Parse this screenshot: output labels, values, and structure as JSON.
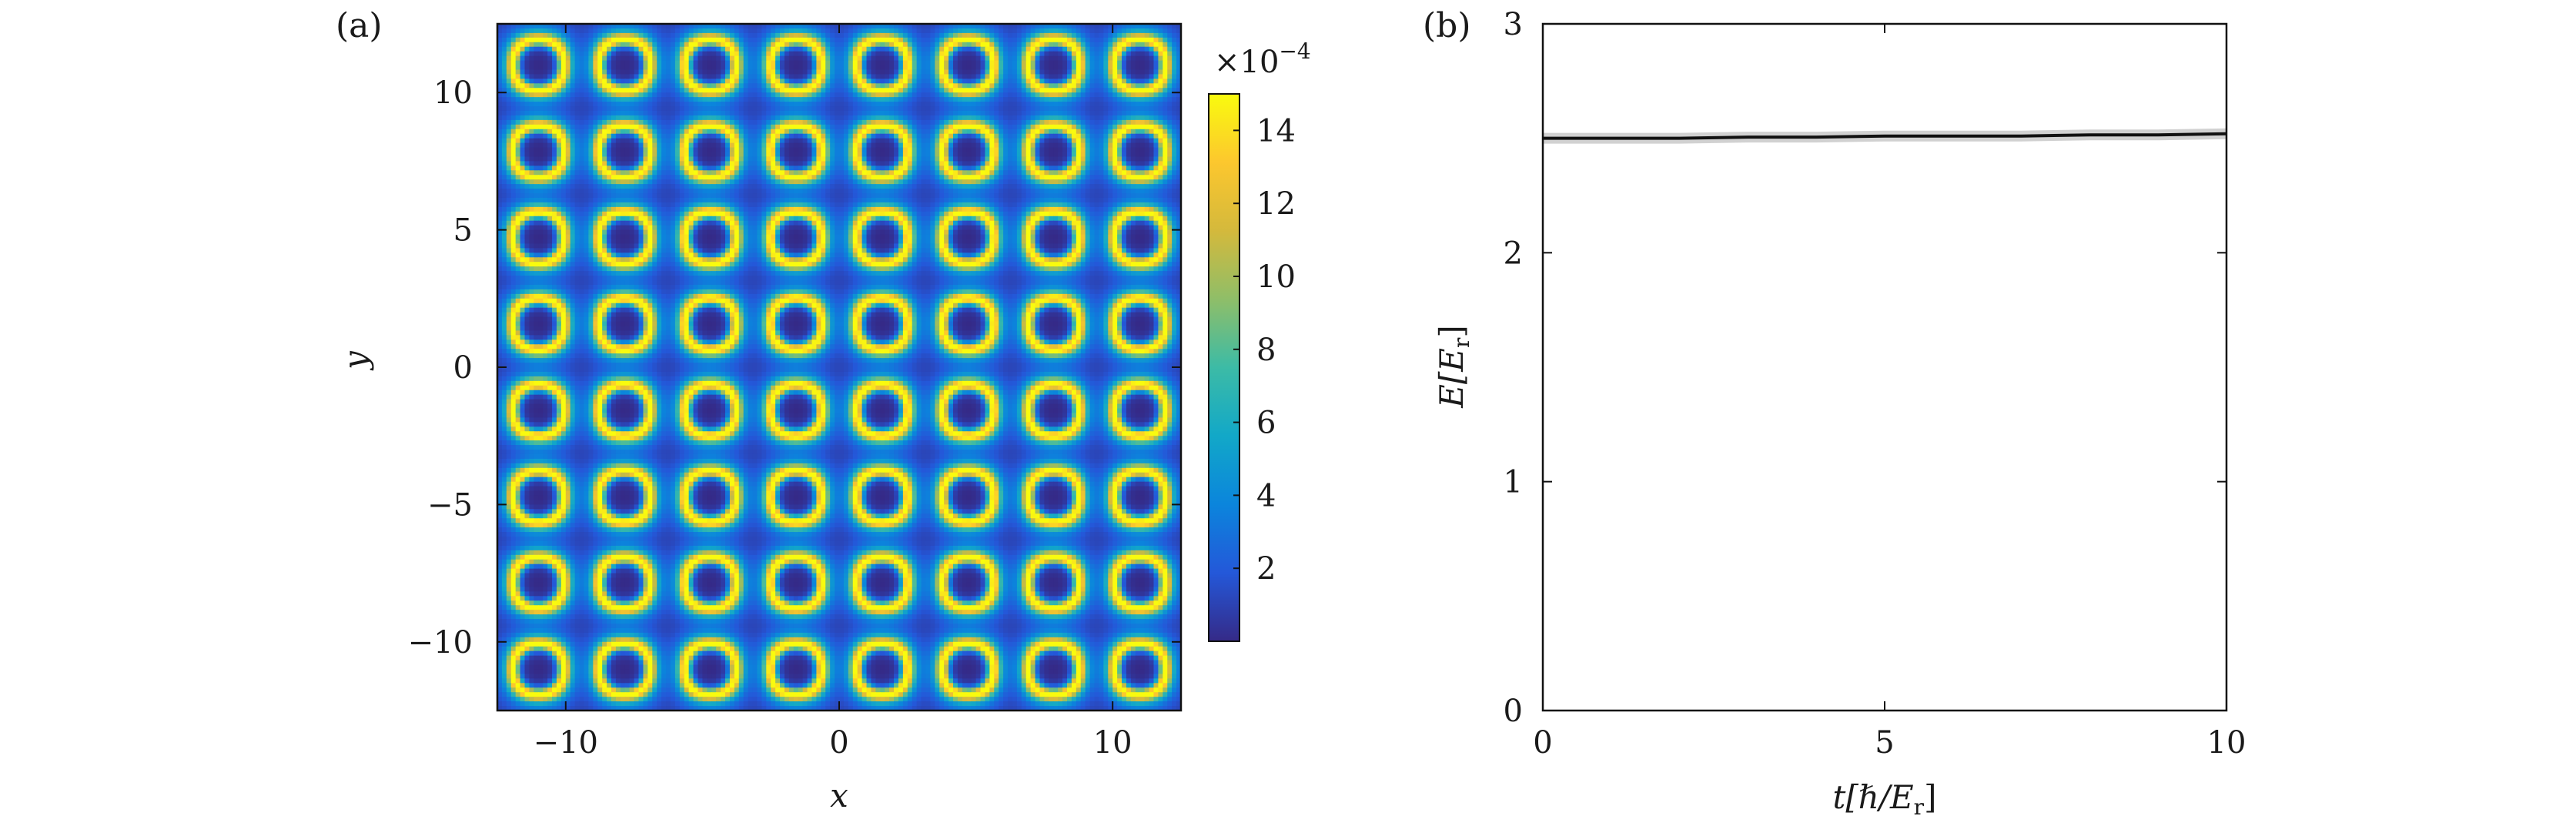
{
  "chart_data": [
    {
      "panel_label": "(a)",
      "type": "heatmap",
      "xlabel": "x",
      "ylabel": "y",
      "xlim": [
        -12.5,
        12.5
      ],
      "ylim": [
        -12.5,
        12.5
      ],
      "xticks": [
        -10,
        0,
        10
      ],
      "xtick_labels": [
        "−10",
        "0",
        "10"
      ],
      "yticks": [
        -10,
        -5,
        0,
        5,
        10
      ],
      "ytick_labels": [
        "−10",
        "−5",
        "0",
        "5",
        "10"
      ],
      "lattice_period": 3.1416,
      "colormap": "parula",
      "colorbar": {
        "range": [
          0,
          15
        ],
        "scale_label": "×10",
        "scale_exponent": "−4",
        "ticks": [
          2,
          4,
          6,
          8,
          10,
          12,
          14
        ],
        "tick_labels": [
          "2",
          "4",
          "6",
          "8",
          "10",
          "12",
          "14"
        ],
        "colors": [
          "#352a87",
          "#2458d9",
          "#0b85dc",
          "#12a8c8",
          "#3cbba6",
          "#8fbe68",
          "#d4b93c",
          "#fcc72e",
          "#f9fb0e"
        ]
      }
    },
    {
      "panel_label": "(b)",
      "type": "line",
      "xlabel_parts": [
        "t[ℏ/",
        "E",
        "r",
        "]"
      ],
      "ylabel_parts": [
        "E[",
        "E",
        "r",
        "]"
      ],
      "xlim": [
        0,
        10
      ],
      "ylim": [
        0,
        3
      ],
      "xticks": [
        0,
        5,
        10
      ],
      "xtick_labels": [
        "0",
        "5",
        "10"
      ],
      "yticks": [
        0,
        1,
        2,
        3
      ],
      "ytick_labels": [
        "0",
        "1",
        "2",
        "3"
      ],
      "grid": false,
      "series": [
        {
          "x": [
            0,
            1,
            2,
            3,
            4,
            5,
            6,
            7,
            8,
            9,
            10
          ],
          "y": [
            2.5,
            2.5,
            2.5,
            2.505,
            2.505,
            2.51,
            2.51,
            2.51,
            2.515,
            2.515,
            2.52
          ],
          "color": "#111111"
        }
      ]
    }
  ]
}
